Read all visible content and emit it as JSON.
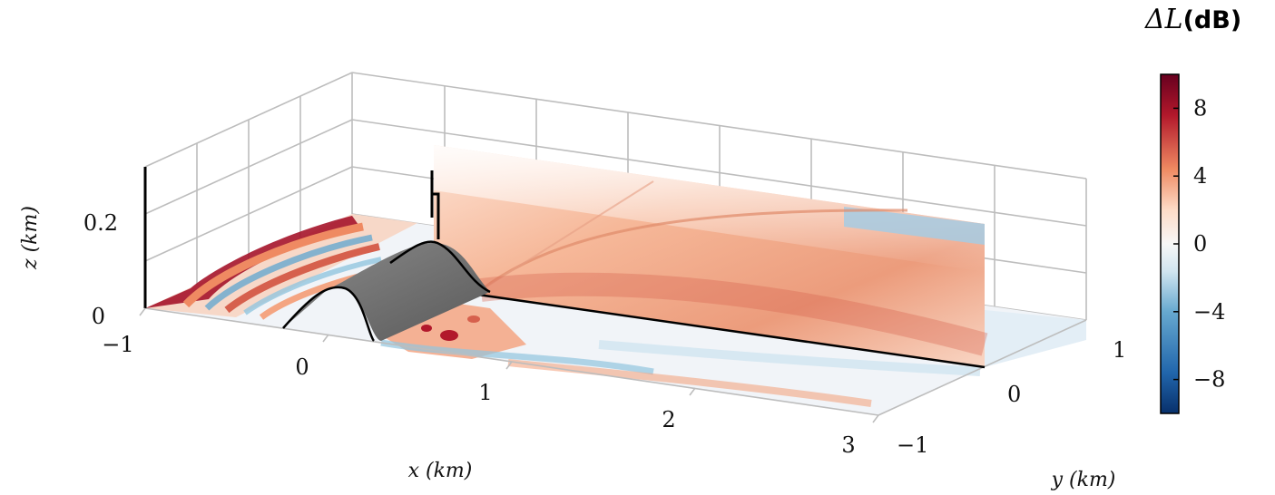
{
  "chart_data": {
    "type": "heatmap",
    "title": "",
    "xlabel": "x (km)",
    "ylabel": "y (km)",
    "zlabel": "z (km)",
    "x_ticks": [
      "−1",
      "0",
      "1",
      "2",
      "3"
    ],
    "y_ticks": [
      "−1",
      "0",
      "1"
    ],
    "z_ticks": [
      "0",
      "0.2"
    ],
    "xlim": [
      -1,
      3
    ],
    "ylim": [
      -1,
      1
    ],
    "zlim": [
      0,
      0.3
    ],
    "grid": true,
    "colorbar": {
      "label_symbol": "ΔL",
      "label_unit": "(dB)",
      "ticks": [
        "8",
        "4",
        "0",
        "−4",
        "−8"
      ],
      "tick_values": [
        8,
        4,
        0,
        -4,
        -8
      ],
      "range": [
        -10,
        10
      ],
      "colormap": "RdBu_r",
      "colors": [
        "#08306b",
        "#2166ac",
        "#67a9cf",
        "#d1e5f0",
        "#f7f7f7",
        "#fddbc7",
        "#ef8a62",
        "#b2182b",
        "#67001f"
      ]
    },
    "surfaces": [
      {
        "name": "ground plane",
        "z": 0
      },
      {
        "name": "vertical slice",
        "y": 0
      },
      {
        "name": "hill",
        "color": "#6e6e6e"
      }
    ]
  }
}
